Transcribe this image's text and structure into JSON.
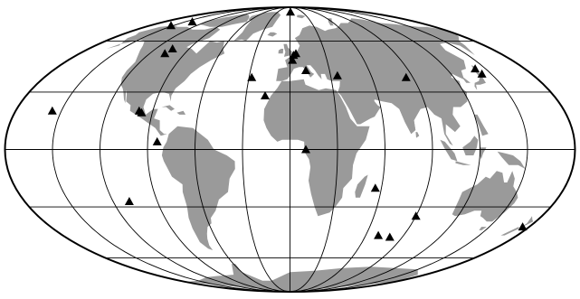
{
  "map": {
    "projection": "Mollweide",
    "graticule": {
      "meridians_deg": [
        -180,
        -150,
        -120,
        -90,
        -60,
        -30,
        0,
        30,
        60,
        90,
        120,
        150,
        180
      ],
      "parallels_deg": [
        -60,
        -30,
        0,
        30,
        60
      ]
    },
    "colors": {
      "ocean": "#ffffff",
      "land": "#9a9a9a",
      "grid": "#000000",
      "marker": "#000000"
    },
    "marker_shape": "triangle",
    "stations": [
      {
        "lon": -153,
        "lat": 71
      },
      {
        "lon": -140,
        "lat": 74
      },
      {
        "lon": -105,
        "lat": 55
      },
      {
        "lon": -107,
        "lat": 52
      },
      {
        "lon": -156,
        "lat": 20
      },
      {
        "lon": -99,
        "lat": 20
      },
      {
        "lon": -97,
        "lat": 19
      },
      {
        "lon": -84,
        "lat": 4
      },
      {
        "lon": -109,
        "lat": -27
      },
      {
        "lon": -28,
        "lat": 38
      },
      {
        "lon": -17,
        "lat": 28
      },
      {
        "lon": 1,
        "lat": 83
      },
      {
        "lon": 2,
        "lat": 48
      },
      {
        "lon": 3,
        "lat": 51
      },
      {
        "lon": 5,
        "lat": 52
      },
      {
        "lon": 12,
        "lat": 42
      },
      {
        "lon": 35,
        "lat": 39
      },
      {
        "lon": 10,
        "lat": 0
      },
      {
        "lon": 85,
        "lat": 38
      },
      {
        "lon": 142,
        "lat": 43
      },
      {
        "lon": 143,
        "lat": 40
      },
      {
        "lon": 56,
        "lat": -20
      },
      {
        "lon": 70,
        "lat": -46
      },
      {
        "lon": 80,
        "lat": -47
      },
      {
        "lon": 90,
        "lat": -35
      },
      {
        "lon": 175,
        "lat": -41
      }
    ]
  }
}
